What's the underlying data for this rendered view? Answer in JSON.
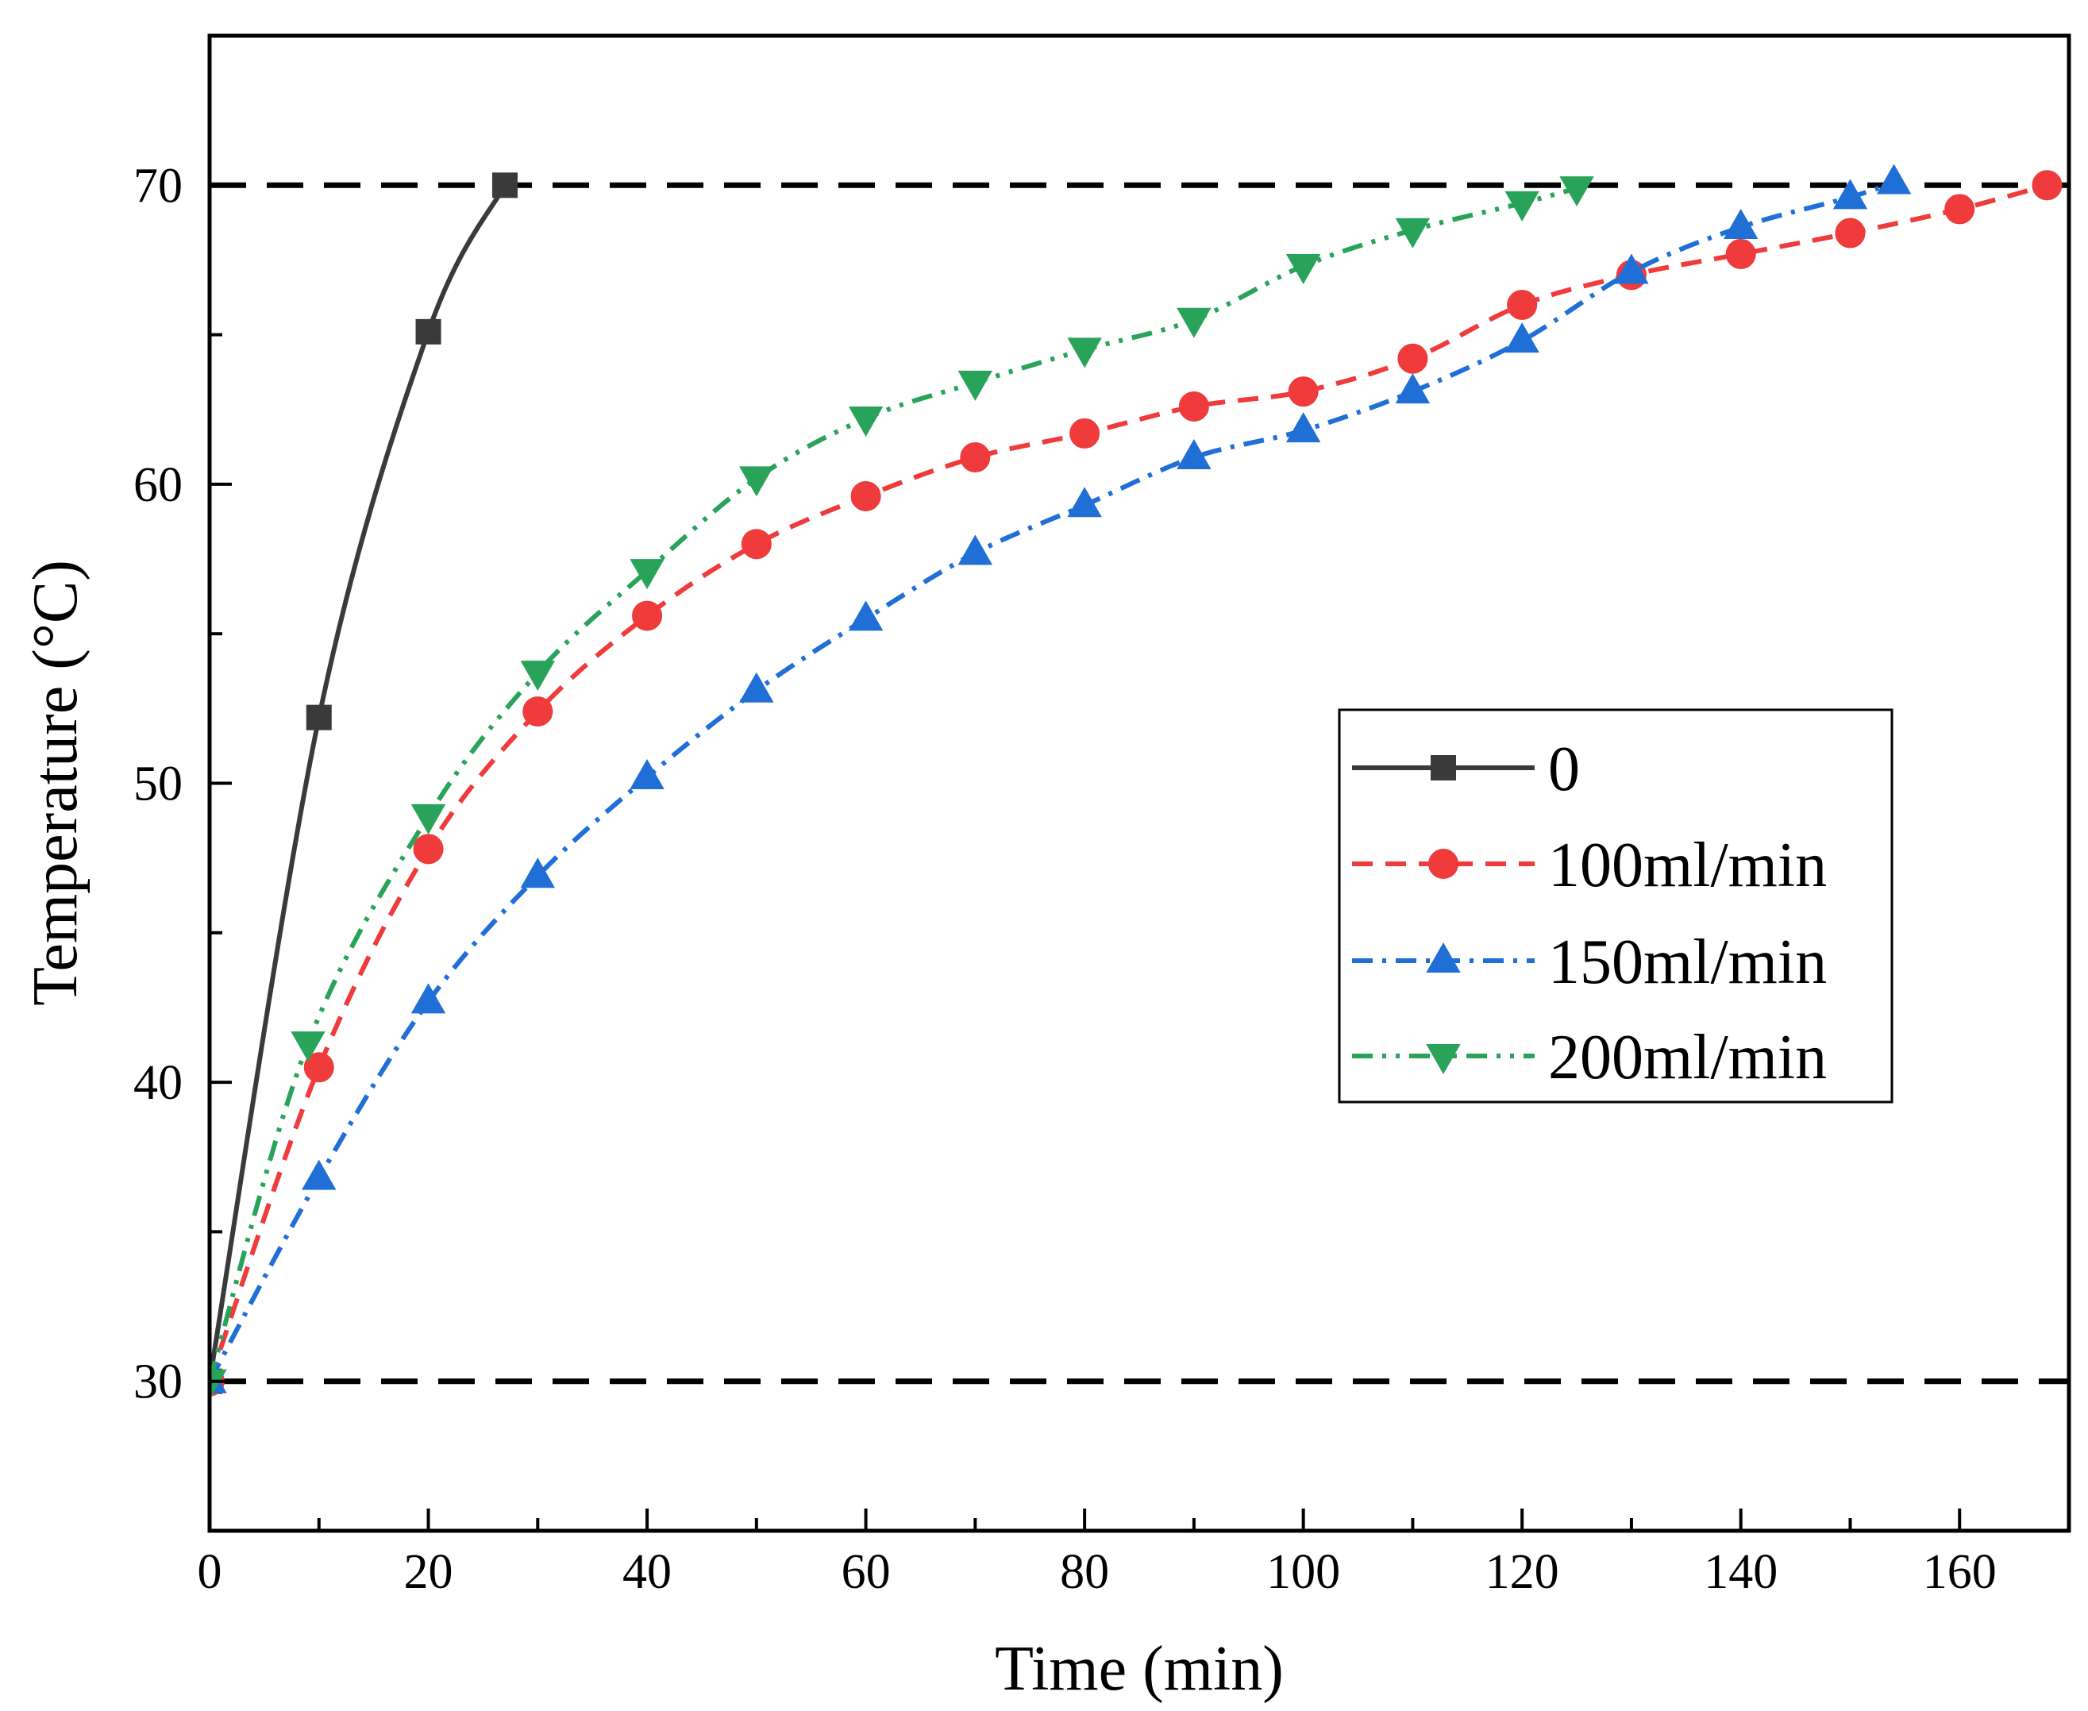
{
  "chart_data": {
    "type": "line",
    "xlabel": "Time (min)",
    "ylabel": "Temperature (°C)",
    "xlim": [
      0,
      170
    ],
    "ylim": [
      25,
      75
    ],
    "xticks": [
      0,
      20,
      40,
      60,
      80,
      100,
      120,
      140,
      160
    ],
    "yticks": [
      30,
      40,
      50,
      60,
      70
    ],
    "minor_x_step": 10,
    "minor_y_step": 5,
    "reference_lines": [
      {
        "axis": "y",
        "value": 70,
        "style": "dashed",
        "color": "#000000"
      },
      {
        "axis": "y",
        "value": 30,
        "style": "dashed",
        "color": "#000000"
      }
    ],
    "legend_position": "center-right",
    "series": [
      {
        "name": "0",
        "color": "#3a3a3a",
        "marker": "square",
        "line_style": "solid",
        "x": [
          0,
          10,
          20,
          27
        ],
        "y": [
          30,
          52.2,
          65.1,
          70
        ]
      },
      {
        "name": "100ml/min",
        "color": "#ef3b3b",
        "marker": "circle",
        "line_style": "dashed",
        "x": [
          0,
          10,
          20,
          30,
          40,
          50,
          60,
          70,
          80,
          90,
          100,
          110,
          120,
          130,
          140,
          150,
          160,
          168
        ],
        "y": [
          30,
          40.5,
          47.8,
          52.4,
          55.6,
          58,
          59.6,
          60.9,
          61.7,
          62.6,
          63.1,
          64.2,
          66,
          67,
          67.7,
          68.4,
          69.2,
          70
        ]
      },
      {
        "name": "150ml/min",
        "color": "#1f6fd6",
        "marker": "triangle-up",
        "line_style": "dashdot",
        "x": [
          0,
          10,
          20,
          30,
          40,
          50,
          60,
          70,
          80,
          90,
          100,
          110,
          120,
          130,
          140,
          150,
          154
        ],
        "y": [
          30,
          36.8,
          42.7,
          46.9,
          50.2,
          53.1,
          55.5,
          57.7,
          59.3,
          60.9,
          61.8,
          63.1,
          64.8,
          67.1,
          68.6,
          69.6,
          70.1
        ]
      },
      {
        "name": "200ml/min",
        "color": "#29a35a",
        "marker": "triangle-down",
        "line_style": "dashdotdot",
        "x": [
          0,
          9,
          20,
          30,
          40,
          50,
          60,
          70,
          80,
          90,
          100,
          110,
          120,
          125
        ],
        "y": [
          30,
          41.3,
          48.9,
          53.7,
          57.1,
          60.2,
          62.2,
          63.4,
          64.5,
          65.5,
          67.3,
          68.5,
          69.4,
          69.9
        ]
      }
    ]
  }
}
